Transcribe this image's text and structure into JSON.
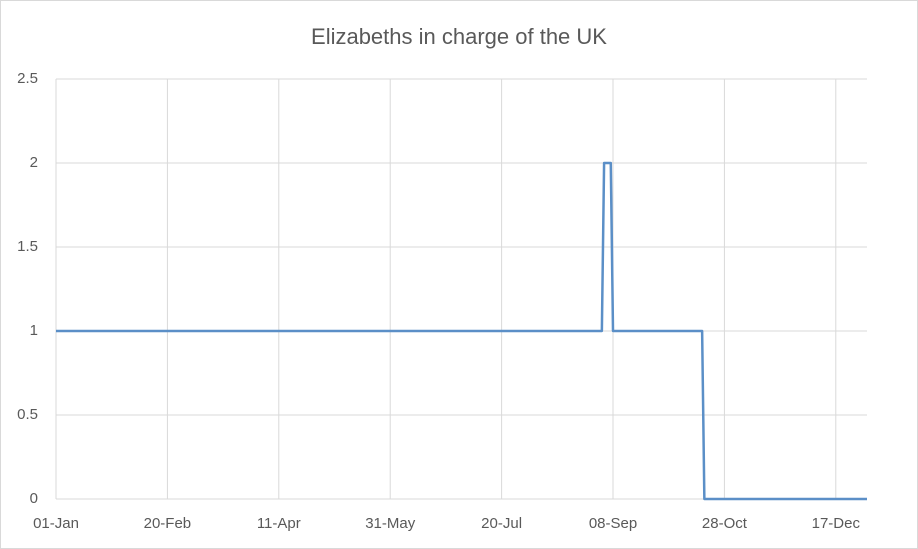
{
  "chart_data": {
    "type": "line",
    "title": "Elizabeths in charge of the UK",
    "x": [
      0,
      245,
      246,
      249,
      250,
      290,
      291,
      364
    ],
    "series": [
      {
        "color": "#5b8fc7",
        "values": [
          1,
          1,
          2,
          2,
          1,
          1,
          0,
          0
        ]
      }
    ],
    "xlim": [
      0,
      364
    ],
    "xticks": [
      {
        "value": 0,
        "label": "01-Jan"
      },
      {
        "value": 50,
        "label": "20-Feb"
      },
      {
        "value": 100,
        "label": "11-Apr"
      },
      {
        "value": 150,
        "label": "31-May"
      },
      {
        "value": 200,
        "label": "20-Jul"
      },
      {
        "value": 250,
        "label": "08-Sep"
      },
      {
        "value": 300,
        "label": "28-Oct"
      },
      {
        "value": 350,
        "label": "17-Dec"
      }
    ],
    "ylim": [
      0,
      2.5
    ],
    "yticks": [
      0,
      0.5,
      1,
      1.5,
      2,
      2.5
    ],
    "grid": true
  }
}
